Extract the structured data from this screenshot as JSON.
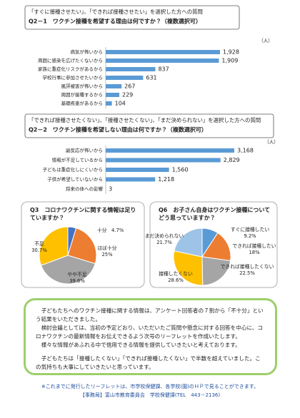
{
  "chart_data": [
    {
      "type": "bar",
      "orientation": "horizontal",
      "subtitle": "「すぐに接種させたい」、「できれば接種させたい」を選択した方への質問",
      "title": "Q2－1　ワクチン接種を希望する理由は何ですか？（複数選択可）",
      "unit": "（人）",
      "categories": [
        "病気が怖いから",
        "周囲に感染を広げたくないから",
        "家族に重症化リスクがあるから",
        "学校行事に参加させたいから",
        "風評被害が怖いから",
        "周囲が接種するから",
        "基礎疾患があるから"
      ],
      "values": [
        1928,
        1909,
        837,
        631,
        267,
        229,
        104
      ],
      "value_labels": [
        "1,928",
        "1,909",
        "837",
        "631",
        "267",
        "229",
        "104"
      ],
      "color": "#5b9bd5"
    },
    {
      "type": "bar",
      "orientation": "horizontal",
      "subtitle": "「できれば接種させたくない」、「接種させたくない」、「まだ決められない」を選択した方への質問",
      "title": "Q2－2　ワクチン接種を希望しない理由は何ですか？（複数選択可）",
      "unit": "（人）",
      "categories": [
        "副反応が怖いから",
        "情報が不足しているから",
        "子どもは重症化しにくいから",
        "子供が希望していないから",
        "将来の体への影響"
      ],
      "values": [
        3168,
        2829,
        1560,
        1218,
        3
      ],
      "value_labels": [
        "3,168",
        "2,829",
        "1,560",
        "1,218",
        "3"
      ],
      "color": "#5b9bd5"
    },
    {
      "type": "pie",
      "title": "Q3　コロナワクチンに関する情報は足りていますか？",
      "categories": [
        "十分",
        "ほぼ十分",
        "やや不足",
        "不足"
      ],
      "values": [
        4.7,
        25,
        39.6,
        30.7
      ],
      "value_labels": [
        "4.7%",
        "25%",
        "39.6%",
        "30.7%"
      ],
      "colors": [
        "#4472c4",
        "#ed7d31",
        "#a5a5a5",
        "#ffc000"
      ]
    },
    {
      "type": "pie",
      "title": "Q6　お子さん自身はワクチン接種についてどう思っていますか？",
      "categories": [
        "すぐに接種したい",
        "できれば接種したい",
        "できれば接種したくない",
        "接種したくない",
        "まだ決められない"
      ],
      "values": [
        9.2,
        18,
        22.5,
        28.6,
        21.7
      ],
      "value_labels": [
        "9.2%",
        "18%",
        "22.5%",
        "28.6%",
        "21.7%"
      ],
      "colors": [
        "#5b9bd5",
        "#ed7d31",
        "#a5a5a5",
        "#ffc000",
        "#9dc3e6"
      ]
    }
  ],
  "summary": {
    "paragraphs": [
      "子どもたちへのワクチン接種に関する情報は、アンケート回答者の７割から「不十分」という結果をいただきました。",
      "検討会議としては、当初の予定どおり、いただいたご質問や懸念に対する回答を中心に、コロナワクチンの最新情報をお伝えできるよう次号のリーフレットを作成いたします。",
      "様々な情報があふれる中で信用できる情報を提供していきたいと考えております。",
      "子どもたちは「接種したくない」「できれば接種したくない」で半数を超えていました。この気持ちも大事にしていきたいと思っています。"
    ]
  },
  "footer": {
    "note": "※これまでに発行したリーフレットは、市学校保健課、各学校(園)のＨＰで見ることができます。",
    "office": "【事務局】富山市教育委員会　学校保健課(TEL　443－2136)"
  }
}
